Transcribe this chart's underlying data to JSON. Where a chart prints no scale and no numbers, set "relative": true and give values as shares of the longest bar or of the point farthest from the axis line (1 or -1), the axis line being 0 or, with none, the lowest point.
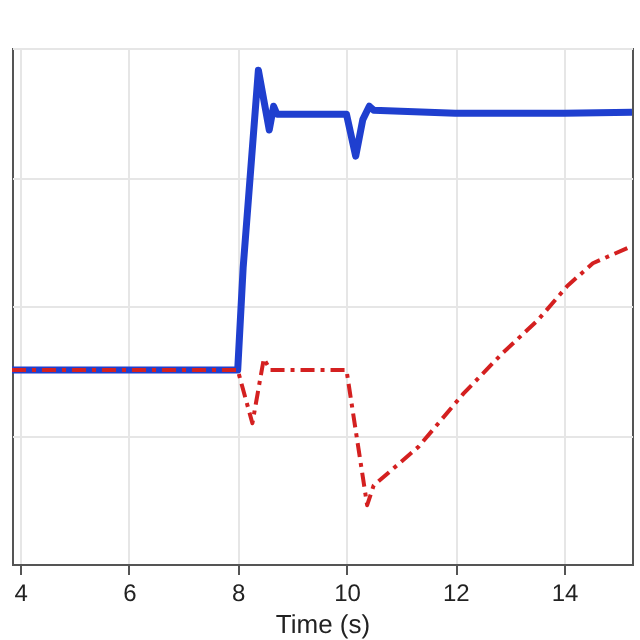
{
  "chart_data": {
    "type": "line",
    "xlabel": "Time (s)",
    "relative": true,
    "xlim": [
      3.85,
      15.25
    ],
    "xticks": [
      4,
      6,
      8,
      10,
      12,
      14
    ],
    "grid": true,
    "marker": "none",
    "series": [
      {
        "color": "#1f3fcf",
        "line_style": "solid",
        "x": [
          3.85,
          8.0,
          8.1,
          8.38,
          8.58,
          8.66,
          8.72,
          10.0,
          10.17,
          10.3,
          10.42,
          10.5,
          12.0,
          14.0,
          15.25
        ],
        "values": [
          0.393,
          0.393,
          0.6,
          1.0,
          0.879,
          0.927,
          0.911,
          0.911,
          0.826,
          0.9,
          0.927,
          0.919,
          0.913,
          0.913,
          0.915
        ]
      },
      {
        "color": "#d42020",
        "line_style": "dashed",
        "x": [
          3.85,
          8.0,
          8.27,
          8.48,
          8.6,
          10.0,
          10.38,
          10.5,
          11.33,
          12.15,
          12.86,
          13.52,
          14.06,
          14.53,
          15.25
        ],
        "values": [
          0.393,
          0.393,
          0.285,
          0.416,
          0.393,
          0.393,
          0.119,
          0.159,
          0.238,
          0.345,
          0.426,
          0.494,
          0.563,
          0.609,
          0.644
        ]
      }
    ]
  }
}
